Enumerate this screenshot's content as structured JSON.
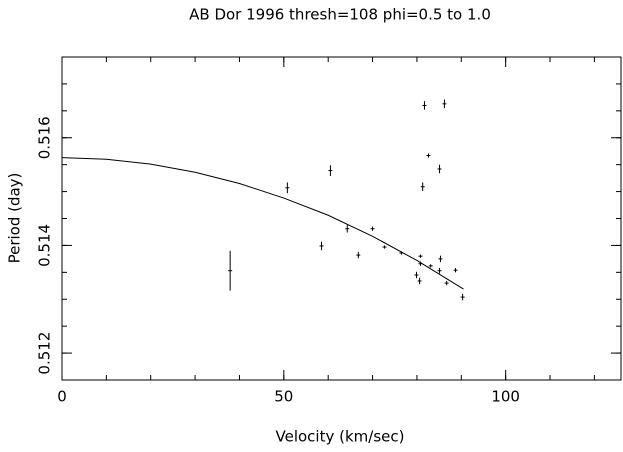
{
  "chart_data": {
    "type": "scatter",
    "title": "AB Dor 1996 thresh=108 phi=0.5 to 1.0",
    "x_label": "Velocity (km/sec)",
    "y_label": "Period (day)",
    "xlim": [
      0,
      126
    ],
    "ylim": [
      0.5115,
      0.5175
    ],
    "xticks": [
      0,
      50,
      100
    ],
    "yticks": [
      0.512,
      0.514,
      0.516
    ],
    "xminor_step": 10,
    "yminor_step": 0.0005,
    "color": "#000000",
    "points": {
      "x": [
        37.9,
        50.8,
        58.5,
        60.5,
        64.3,
        66.8,
        70.0,
        72.7,
        76.5,
        79.9,
        80.6,
        80.8,
        80.8,
        81.3,
        81.7,
        82.6,
        83.1,
        85.1,
        85.1,
        85.3,
        86.2,
        86.7,
        88.7,
        90.3
      ],
      "values": [
        0.51353,
        0.51507,
        0.51399,
        0.51539,
        0.51431,
        0.51382,
        0.51431,
        0.51397,
        0.51386,
        0.51345,
        0.51334,
        0.5138,
        0.51366,
        0.51509,
        0.5166,
        0.51567,
        0.51362,
        0.51542,
        0.51353,
        0.51375,
        0.51663,
        0.5133,
        0.51354,
        0.51304
      ],
      "errors": [
        0.00037,
        0.0001,
        8e-05,
        0.0001,
        7e-05,
        6e-05,
        4e-05,
        3e-05,
        3e-05,
        6e-05,
        6e-05,
        3e-05,
        4e-05,
        8e-05,
        8e-05,
        4e-05,
        3e-05,
        8e-05,
        5e-05,
        6e-05,
        8e-05,
        4e-05,
        4e-05,
        6e-05
      ]
    },
    "fit": {
      "x": [
        0,
        10,
        20,
        30,
        40,
        50,
        60,
        70,
        80,
        90.5
      ],
      "values": [
        0.51563,
        0.5156,
        0.51551,
        0.51536,
        0.51515,
        0.51488,
        0.51456,
        0.51417,
        0.51372,
        0.51319
      ]
    }
  }
}
